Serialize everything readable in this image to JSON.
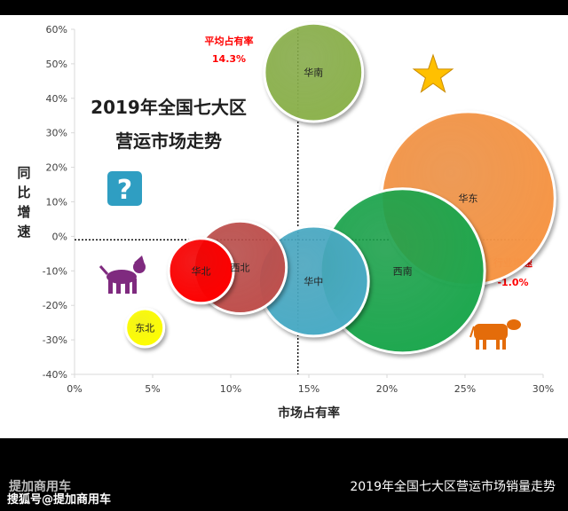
{
  "chart_data": {
    "type": "scatter",
    "subtype": "bubble",
    "title_lines": [
      "2019年全国七大区",
      "营运市场走势"
    ],
    "xlabel": "市场占有率",
    "ylabel": "同比增速",
    "xlim": [
      0,
      30
    ],
    "ylim": [
      -40,
      60
    ],
    "x_ticks": [
      "0%",
      "5%",
      "10%",
      "15%",
      "20%",
      "25%",
      "30%"
    ],
    "y_ticks": [
      "60%",
      "50%",
      "40%",
      "30%",
      "20%",
      "10%",
      "0%",
      "-10%",
      "-20%",
      "-30%",
      "-40%"
    ],
    "grid": false,
    "points": [
      {
        "label": "华南",
        "x": 15.3,
        "y": 47.5,
        "size": 8.5,
        "color": "#8db34e"
      },
      {
        "label": "华东",
        "x": 25.2,
        "y": 11.0,
        "size": 15.0,
        "color": "#f79646"
      },
      {
        "label": "西南",
        "x": 21.0,
        "y": -10.0,
        "size": 14.2,
        "color": "#1ea84f"
      },
      {
        "label": "华中",
        "x": 15.3,
        "y": -13.0,
        "size": 9.5,
        "color": "#4bacc6"
      },
      {
        "label": "西北",
        "x": 10.6,
        "y": -9.0,
        "size": 8.0,
        "color": "#c0504d"
      },
      {
        "label": "华北",
        "x": 8.1,
        "y": -10.0,
        "size": 5.6,
        "color": "#ff0000"
      },
      {
        "label": "东北",
        "x": 4.5,
        "y": -26.5,
        "size": 3.3,
        "color": "#ffff00"
      }
    ],
    "reference_lines": [
      {
        "axis": "x",
        "value": 14.3,
        "label": "平均占有率",
        "value_label": "14.3%"
      },
      {
        "axis": "y",
        "value": -1.0,
        "label": "行业增速",
        "value_label": "-1.0%"
      }
    ],
    "decorations": [
      "star-icon",
      "question-mark-icon",
      "dog-icon",
      "cow-icon"
    ]
  },
  "footer": {
    "caption": "2019年全国七大区营运市场销量走势",
    "watermark_logo": "提加商用车",
    "watermark_credit": "搜狐号@提加商用车"
  },
  "colors": {
    "axis": "#d9d9d9",
    "tick_text": "#404040",
    "title_text": "#1f1f1f",
    "ref_label": "#ff0000",
    "star": "#ffc000",
    "question_bg": "#2f9ec2",
    "dog": "#7f2a7f",
    "cow": "#e46c0a"
  }
}
